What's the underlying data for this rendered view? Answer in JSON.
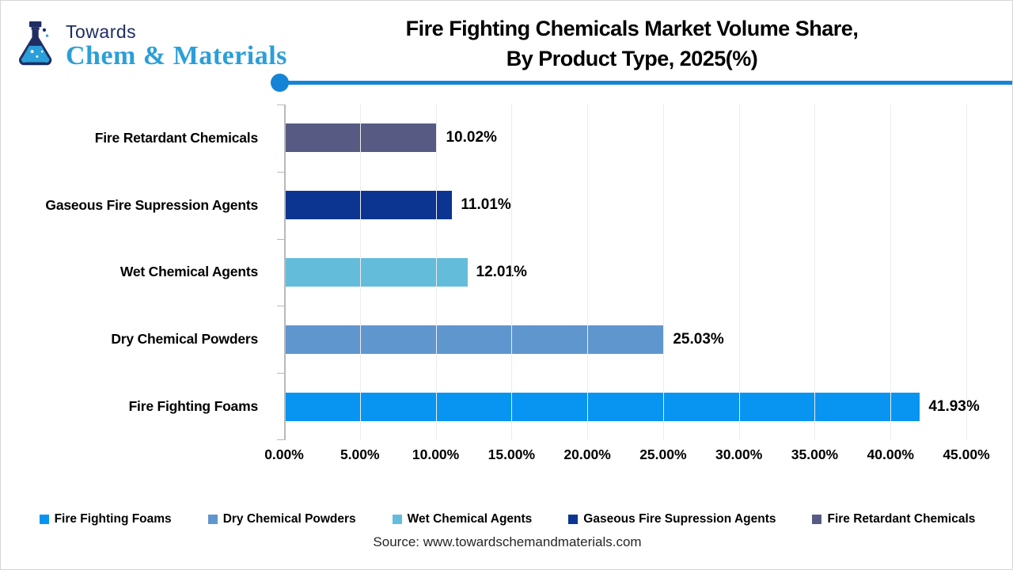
{
  "logo": {
    "top_text": "Towards",
    "bottom_text": "Chem & Materials",
    "navy": "#1f2d63",
    "blue": "#2b9fd9"
  },
  "header": {
    "title_line1": "Fire Fighting Chemicals Market Volume Share,",
    "title_line2": "By Product Type, 2025(%)",
    "rule_color": "#1484d7"
  },
  "source": "Source: www.towardschemandmaterials.com",
  "chart_data": {
    "type": "bar",
    "orientation": "horizontal",
    "title": "Fire Fighting Chemicals Market Volume Share, By Product Type, 2025(%)",
    "categories_top_to_bottom": [
      "Fire Retardant Chemicals",
      "Gaseous Fire Supression Agents",
      "Wet Chemical Agents",
      "Dry Chemical Powders",
      "Fire Fighting Foams"
    ],
    "values": [
      10.02,
      11.01,
      12.01,
      25.03,
      41.93
    ],
    "value_labels": [
      "10.02%",
      "11.01%",
      "12.01%",
      "25.03%",
      "41.93%"
    ],
    "bar_colors": [
      "#575b83",
      "#0b3590",
      "#64bcdb",
      "#6096ce",
      "#0894f1"
    ],
    "xlim": [
      0,
      45
    ],
    "xtick_values": [
      0,
      5,
      10,
      15,
      20,
      25,
      30,
      35,
      40,
      45
    ],
    "xtick_labels": [
      "0.00%",
      "5.00%",
      "10.00%",
      "15.00%",
      "20.00%",
      "25.00%",
      "30.00%",
      "35.00%",
      "40.00%",
      "45.00%"
    ],
    "grid": "vertical-light",
    "legend_position": "bottom",
    "legend": [
      {
        "label": "Fire Fighting Foams",
        "color": "#0894f1"
      },
      {
        "label": "Dry Chemical Powders",
        "color": "#6096ce"
      },
      {
        "label": "Wet Chemical Agents",
        "color": "#64bcdb"
      },
      {
        "label": "Gaseous Fire Supression Agents",
        "color": "#0b3590"
      },
      {
        "label": "Fire Retardant Chemicals",
        "color": "#575b83"
      }
    ]
  }
}
